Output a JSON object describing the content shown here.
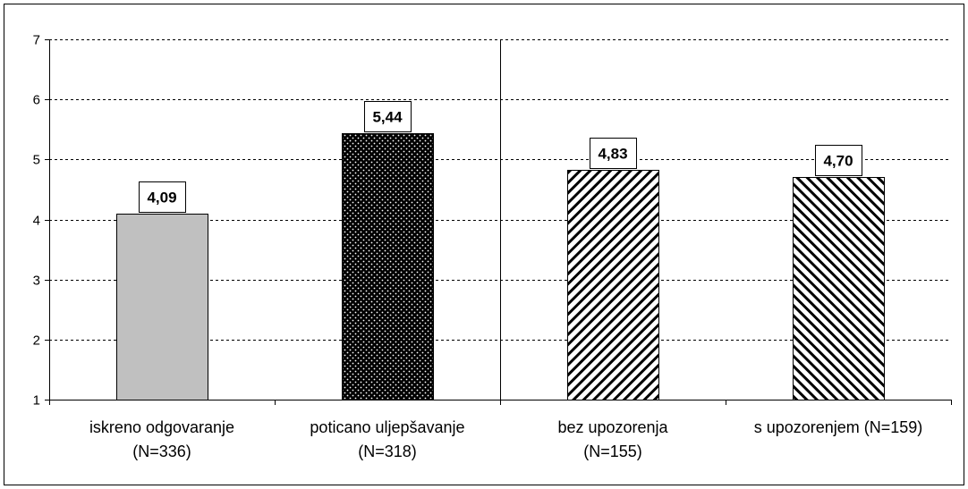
{
  "chart_data": {
    "type": "bar",
    "categories": [
      [
        "iskreno odgovaranje",
        "(N=336)"
      ],
      [
        "poticano uljepšavanje",
        "(N=318)"
      ],
      [
        "bez upozorenja",
        "(N=155)"
      ],
      [
        "s upozorenjem (N=159)"
      ]
    ],
    "values": [
      4.09,
      5.44,
      4.83,
      4.7
    ],
    "value_labels": [
      "4,09",
      "5,44",
      "4,83",
      "4,70"
    ],
    "bar_styles": [
      "solid-gray",
      "dotted-black",
      "hatch-back",
      "hatch-forward"
    ],
    "ylim": [
      1,
      7
    ],
    "yticks": [
      1,
      2,
      3,
      4,
      5,
      6,
      7
    ],
    "grid": "dashed horizontal",
    "group_divider_after_category": 1,
    "title": "",
    "xlabel": "",
    "ylabel": "",
    "colors": {
      "gray_bar": "#c0c0c0",
      "dark_bar": "#000000",
      "gridline": "#000000"
    }
  }
}
